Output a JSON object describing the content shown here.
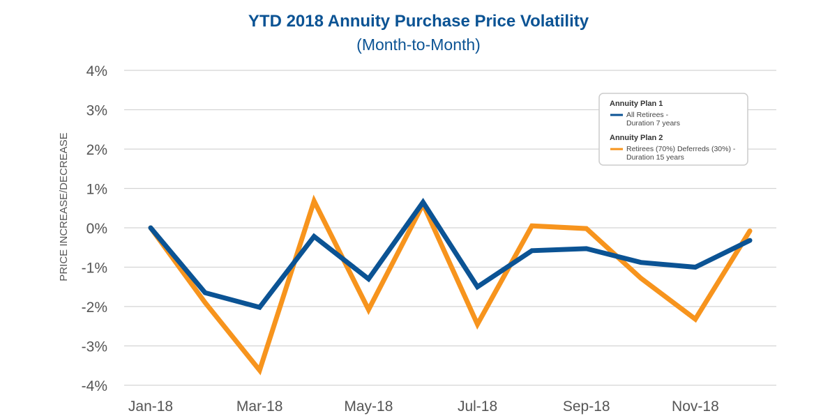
{
  "chart_data": {
    "type": "line",
    "title": "YTD 2018 Annuity Purchase Price Volatility",
    "subtitle": "(Month-to-Month)",
    "xlabel": "",
    "ylabel": "PRICE INCREASE/DECREASE",
    "ylim": [
      -4,
      4
    ],
    "y_ticks": [
      "4%",
      "3%",
      "2%",
      "1%",
      "0%",
      "-1%",
      "-2%",
      "-3%",
      "-4%"
    ],
    "y_tick_values": [
      4,
      3,
      2,
      1,
      0,
      -1,
      -2,
      -3,
      -4
    ],
    "categories": [
      "Jan-18",
      "Feb-18",
      "Mar-18",
      "Apr-18",
      "May-18",
      "Jun-18",
      "Jul-18",
      "Aug-18",
      "Sep-18",
      "Oct-18",
      "Nov-18",
      "Dec-18"
    ],
    "x_tick_labels": [
      "Jan-18",
      "Mar-18",
      "May-18",
      "Jul-18",
      "Sep-18",
      "Nov-18"
    ],
    "x_tick_indices": [
      0,
      2,
      4,
      6,
      8,
      10
    ],
    "grid": true,
    "legend_position": "top-right",
    "series": [
      {
        "name": "All Retirees - Duration 7 years",
        "group": "Annuity Plan 1",
        "label_line1": "All Retirees -",
        "label_line2": "Duration 7 years",
        "color": "#0b5394",
        "values": [
          0.0,
          -1.65,
          -2.02,
          -0.22,
          -1.3,
          0.65,
          -1.5,
          -0.58,
          -0.53,
          -0.88,
          -1.0,
          -0.32
        ]
      },
      {
        "name": "Retirees (70%) Deferreds (30%) - Duration 15 years",
        "group": "Annuity Plan 2",
        "label_line1": "Retirees (70%) Deferreds (30%) -",
        "label_line2": "Duration 15 years",
        "color": "#f7941d",
        "values": [
          0.0,
          -1.9,
          -3.62,
          0.68,
          -2.08,
          0.6,
          -2.45,
          0.05,
          -0.02,
          -1.28,
          -2.32,
          -0.08
        ]
      }
    ]
  },
  "colors": {
    "title": "#0b5394",
    "grid": "#d4d4d4",
    "legend_border": "#cccccc"
  }
}
